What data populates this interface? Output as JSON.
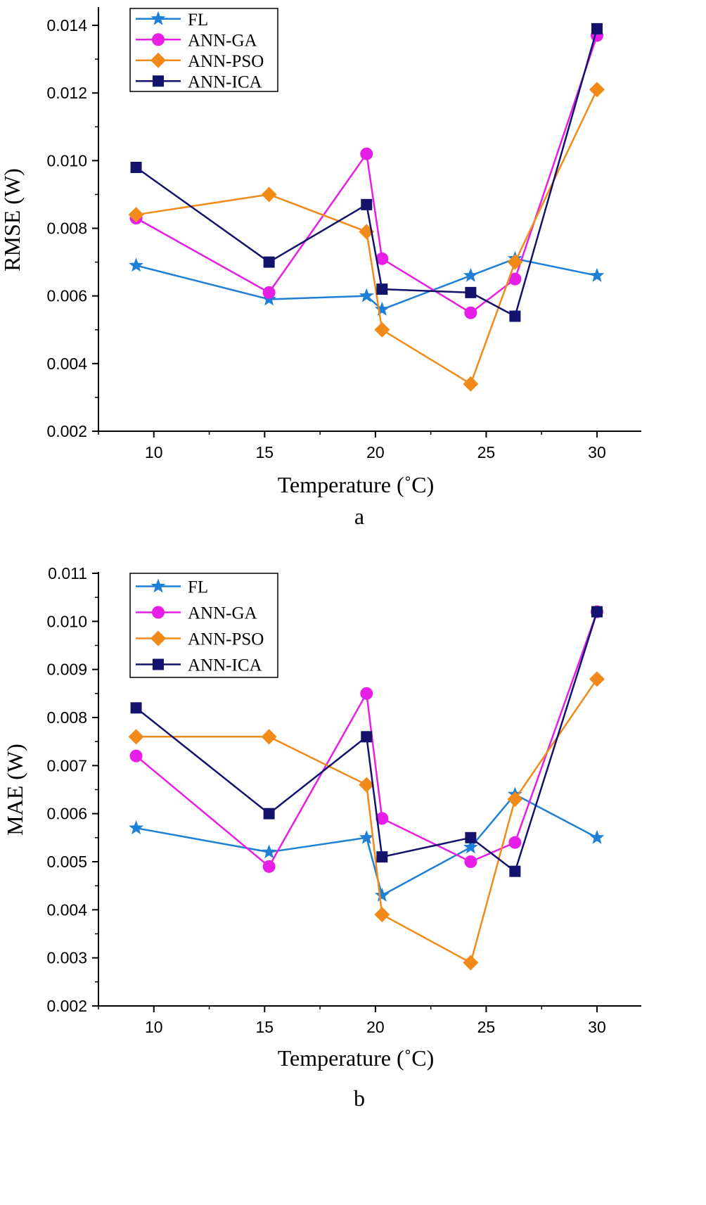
{
  "chart_data": [
    {
      "type": "line",
      "panel_label": "a",
      "xlabel": "Temperature (˚C)",
      "ylabel": "RMSE (W)",
      "xlim": [
        7.5,
        32
      ],
      "ylim": [
        0.002,
        0.0145
      ],
      "x_ticks": [
        10,
        15,
        20,
        25,
        30
      ],
      "x_tick_labels": [
        "10",
        "15",
        "20",
        "25",
        "30"
      ],
      "y_ticks": [
        0.002,
        0.004,
        0.006,
        0.008,
        0.01,
        0.012,
        0.014
      ],
      "y_tick_labels": [
        "0.002",
        "0.004",
        "0.006",
        "0.008",
        "0.010",
        "0.012",
        "0.014"
      ],
      "legend_position": "top-left",
      "x": [
        9.2,
        15.2,
        19.6,
        20.3,
        24.3,
        26.3,
        30
      ],
      "series": [
        {
          "name": "FL",
          "color": "#1e7fd6",
          "marker": "star",
          "values": [
            0.0069,
            0.0059,
            0.006,
            0.0056,
            0.0066,
            0.0071,
            0.0066
          ]
        },
        {
          "name": "ANN-GA",
          "color": "#e61ee6",
          "marker": "circle",
          "values": [
            0.0083,
            0.0061,
            0.0102,
            0.0071,
            0.0055,
            0.0065,
            0.0137
          ]
        },
        {
          "name": "ANN-PSO",
          "color": "#f28a1a",
          "marker": "diamond",
          "values": [
            0.0084,
            0.009,
            0.0079,
            0.005,
            0.0034,
            0.007,
            0.0121
          ]
        },
        {
          "name": "ANN-ICA",
          "color": "#13136e",
          "marker": "square",
          "values": [
            0.0098,
            0.007,
            0.0087,
            0.0062,
            0.0061,
            0.0054,
            0.0139
          ]
        }
      ]
    },
    {
      "type": "line",
      "panel_label": "b",
      "xlabel": "Temperature (˚C)",
      "ylabel": "MAE (W)",
      "xlim": [
        7.5,
        32
      ],
      "ylim": [
        0.002,
        0.011
      ],
      "x_ticks": [
        10,
        15,
        20,
        25,
        30
      ],
      "x_tick_labels": [
        "10",
        "15",
        "20",
        "25",
        "30"
      ],
      "y_ticks": [
        0.002,
        0.003,
        0.004,
        0.005,
        0.006,
        0.007,
        0.008,
        0.009,
        0.01,
        0.011
      ],
      "y_tick_labels": [
        "0.002",
        "0.003",
        "0.004",
        "0.005",
        "0.006",
        "0.007",
        "0.008",
        "0.009",
        "0.010",
        "0.011"
      ],
      "legend_position": "top-left",
      "x": [
        9.2,
        15.2,
        19.6,
        20.3,
        24.3,
        26.3,
        30
      ],
      "series": [
        {
          "name": "FL",
          "color": "#1e7fd6",
          "marker": "star",
          "values": [
            0.0057,
            0.0052,
            0.0055,
            0.0043,
            0.0053,
            0.0064,
            0.0055
          ]
        },
        {
          "name": "ANN-GA",
          "color": "#e61ee6",
          "marker": "circle",
          "values": [
            0.0072,
            0.0049,
            0.0085,
            0.0059,
            0.005,
            0.0054,
            0.0102
          ]
        },
        {
          "name": "ANN-PSO",
          "color": "#f28a1a",
          "marker": "diamond",
          "values": [
            0.0076,
            0.0076,
            0.0066,
            0.0039,
            0.0029,
            0.0063,
            0.0088
          ]
        },
        {
          "name": "ANN-ICA",
          "color": "#13136e",
          "marker": "square",
          "values": [
            0.0082,
            0.006,
            0.0076,
            0.0051,
            0.0055,
            0.0048,
            0.0102
          ]
        }
      ]
    }
  ]
}
